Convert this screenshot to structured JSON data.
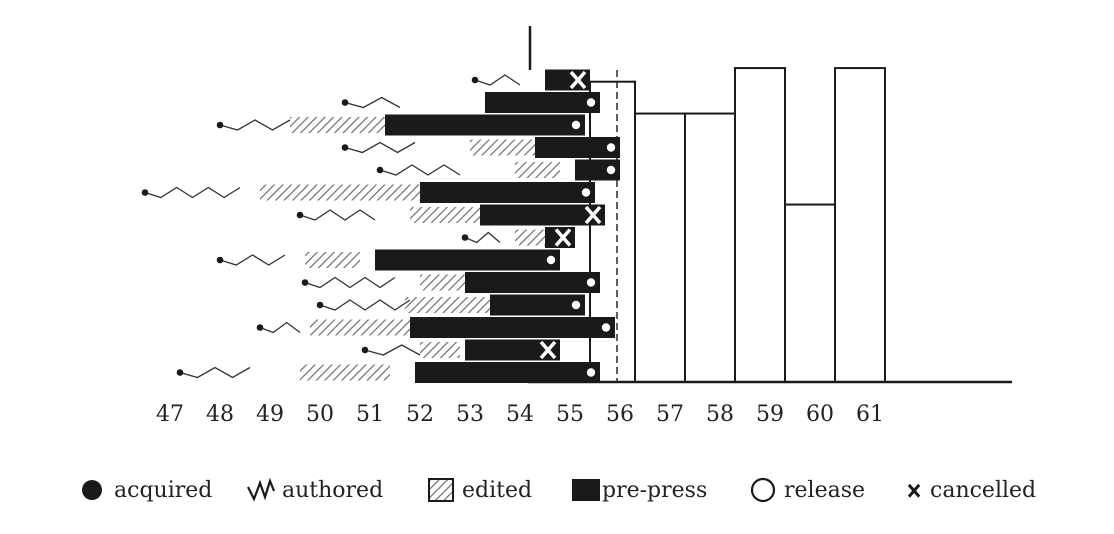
{
  "chart_data": {
    "type": "timeline-histogram",
    "x_axis": {
      "range": [
        46.5,
        64
      ],
      "tick_labels": [
        "47",
        "48",
        "49",
        "50",
        "51",
        "52",
        "53",
        "54",
        "55",
        "56",
        "57",
        "58",
        "59",
        "60",
        "61"
      ]
    },
    "histogram": {
      "description_free": true,
      "bins": [
        {
          "start": 55.4,
          "end": 56.3,
          "value": 6.6
        },
        {
          "start": 56.3,
          "end": 57.3,
          "value": 5.9
        },
        {
          "start": 57.3,
          "end": 58.3,
          "value": 5.9
        },
        {
          "start": 58.3,
          "end": 59.3,
          "value": 6.9
        },
        {
          "start": 59.3,
          "end": 60.3,
          "value": 3.9
        },
        {
          "start": 60.3,
          "end": 61.3,
          "value": 6.9
        }
      ],
      "ylim": [
        0,
        7.8
      ]
    },
    "projects": [
      {
        "acquired": 53.1,
        "authored": [
          53.1,
          54.0
        ],
        "edited": [
          54.5,
          55.1
        ],
        "prepress": [
          54.5,
          55.4
        ],
        "end": "cancelled"
      },
      {
        "acquired": 50.5,
        "authored": [
          50.5,
          51.6
        ],
        "edited": [
          53.3,
          54.0
        ],
        "prepress": [
          53.3,
          55.6
        ],
        "end": "release"
      },
      {
        "acquired": 48.0,
        "authored": [
          48.0,
          49.4
        ],
        "edited": [
          49.4,
          51.3
        ],
        "prepress": [
          51.3,
          55.3
        ],
        "end": "release"
      },
      {
        "acquired": 50.5,
        "authored": [
          50.5,
          51.9
        ],
        "edited": [
          53.0,
          54.3
        ],
        "prepress": [
          54.3,
          56.0
        ],
        "end": "release"
      },
      {
        "acquired": 51.2,
        "authored": [
          51.2,
          52.8
        ],
        "edited": [
          53.9,
          54.8
        ],
        "prepress": [
          55.1,
          56.0
        ],
        "end": "release"
      },
      {
        "acquired": 46.5,
        "authored": [
          46.5,
          48.4
        ],
        "edited": [
          48.8,
          52.0
        ],
        "prepress": [
          52.0,
          55.5
        ],
        "end": "release"
      },
      {
        "acquired": 49.6,
        "authored": [
          49.6,
          51.1
        ],
        "edited": [
          51.8,
          53.2
        ],
        "prepress": [
          53.2,
          55.7
        ],
        "end": "cancelled"
      },
      {
        "acquired": 52.9,
        "authored": [
          52.9,
          53.6
        ],
        "edited": [
          53.9,
          54.5
        ],
        "prepress": [
          54.5,
          55.1
        ],
        "end": "cancelled"
      },
      {
        "acquired": 48.0,
        "authored": [
          48.0,
          49.3
        ],
        "edited": [
          49.7,
          50.8
        ],
        "prepress": [
          51.1,
          54.8
        ],
        "end": "release"
      },
      {
        "acquired": 49.7,
        "authored": [
          49.7,
          51.5
        ],
        "edited": [
          52.0,
          53.0
        ],
        "prepress": [
          52.9,
          55.6
        ],
        "end": "release"
      },
      {
        "acquired": 50.0,
        "authored": [
          50.0,
          51.8
        ],
        "edited": [
          51.7,
          53.4
        ],
        "prepress": [
          53.4,
          55.3
        ],
        "end": "release"
      },
      {
        "acquired": 48.8,
        "authored": [
          48.8,
          49.6
        ],
        "edited": [
          49.8,
          51.8
        ],
        "prepress": [
          51.8,
          55.9
        ],
        "end": "release"
      },
      {
        "acquired": 50.9,
        "authored": [
          50.9,
          52.0
        ],
        "edited": [
          52.0,
          52.8
        ],
        "prepress": [
          52.9,
          54.8
        ],
        "end": "cancelled"
      },
      {
        "acquired": 47.2,
        "authored": [
          47.2,
          48.6
        ],
        "edited": [
          49.6,
          51.4
        ],
        "prepress": [
          51.9,
          55.6
        ],
        "end": "release"
      }
    ],
    "legend": {
      "placement": "bottom",
      "items": [
        {
          "key": "acquired",
          "label": "acquired",
          "icon": "filled-circle-icon"
        },
        {
          "key": "authored",
          "label": "authored",
          "icon": "zigzag-icon"
        },
        {
          "key": "edited",
          "label": "edited",
          "icon": "hatched-square-icon"
        },
        {
          "key": "prepress",
          "label": "pre-press",
          "icon": "filled-square-icon"
        },
        {
          "key": "release",
          "label": "release",
          "icon": "open-circle-icon"
        },
        {
          "key": "cancelled",
          "label": "cancelled",
          "icon": "x-mark-icon"
        }
      ]
    },
    "grid": false,
    "colors": {
      "ink": "#1a1a1a",
      "hatch": "#6e6e6e",
      "background": "#ffffff"
    }
  }
}
